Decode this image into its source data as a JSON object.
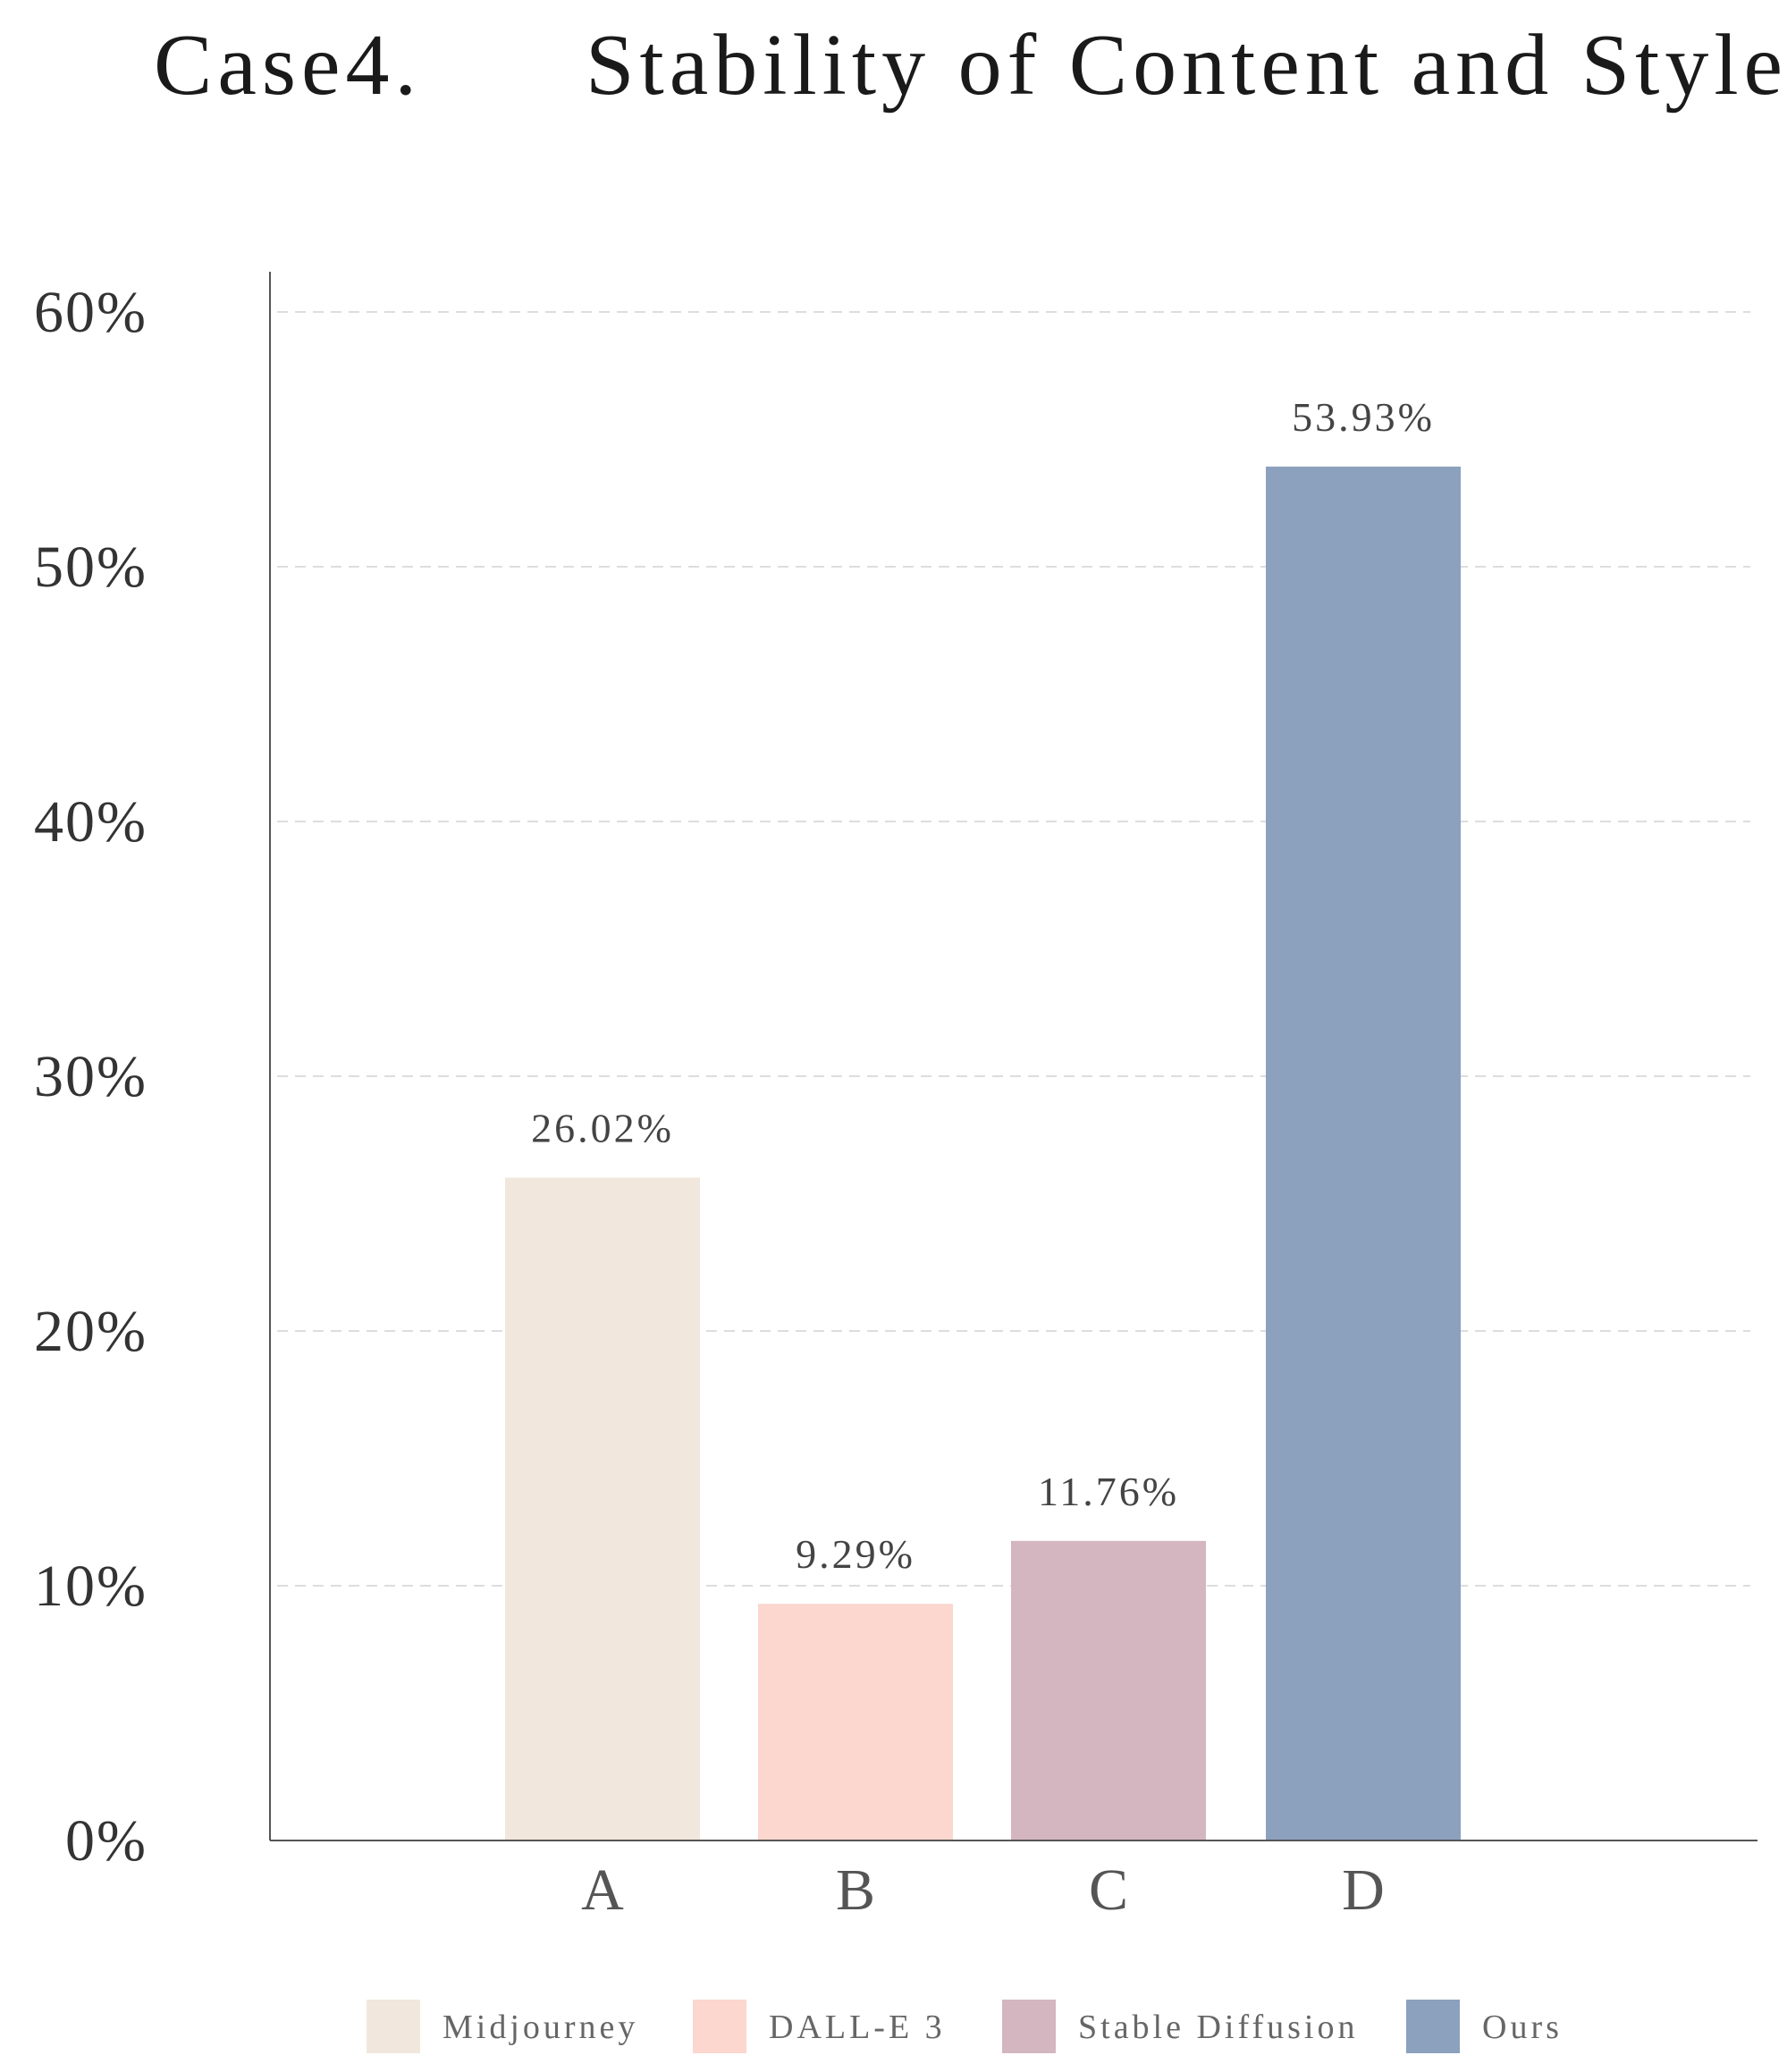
{
  "chart_data": {
    "type": "bar",
    "title": "Case4.      Stability of Content and Style",
    "categories": [
      "A",
      "B",
      "C",
      "D"
    ],
    "values": [
      26.02,
      9.29,
      11.76,
      53.93
    ],
    "value_labels": [
      "26.02%",
      "9.29%",
      "11.76%",
      "53.93%"
    ],
    "bar_colors": [
      "#f1e7dc",
      "#fbd7cf",
      "#d4b6c0",
      "#8ca1be"
    ],
    "ylim": [
      0,
      60
    ],
    "yticks": [
      0,
      10,
      20,
      30,
      40,
      50,
      60
    ],
    "ytick_labels": [
      "0%",
      "10%",
      "20%",
      "30%",
      "40%",
      "50%",
      "60%"
    ],
    "xlabel": "",
    "ylabel": "",
    "grid": true,
    "legend": {
      "placement": "bottom",
      "entries": [
        "Midjourney",
        "DALL-E 3",
        "Stable Diffusion",
        "Ours"
      ]
    }
  }
}
